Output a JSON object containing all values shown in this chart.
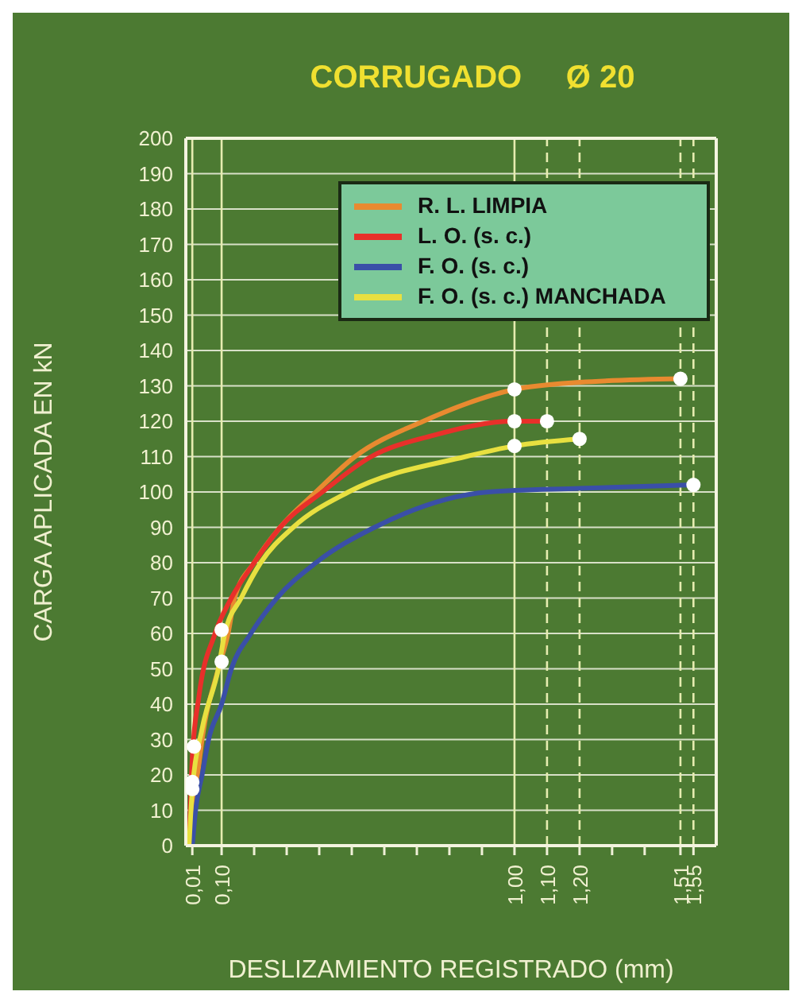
{
  "chart_data": {
    "type": "line",
    "title": "CORRUGADO     Ø 20",
    "xlabel": "DESLIZAMIENTO REGISTRADO (mm)",
    "ylabel": "CARGA APLICADA EN  kN",
    "xlim": [
      -0.01,
      1.62
    ],
    "xticks": [
      {
        "value": 0.01,
        "label": "0,01"
      },
      {
        "value": 0.1,
        "label": "0,10"
      },
      {
        "value": 0.2,
        "label": null
      },
      {
        "value": 0.3,
        "label": null
      },
      {
        "value": 0.4,
        "label": null
      },
      {
        "value": 0.5,
        "label": null
      },
      {
        "value": 0.6,
        "label": null
      },
      {
        "value": 0.7,
        "label": null
      },
      {
        "value": 0.8,
        "label": null
      },
      {
        "value": 0.9,
        "label": null
      },
      {
        "value": 1.0,
        "label": "1,00"
      },
      {
        "value": 1.1,
        "label": "1,10"
      },
      {
        "value": 1.2,
        "label": "1,20"
      },
      {
        "value": 1.3,
        "label": null
      },
      {
        "value": 1.4,
        "label": null
      },
      {
        "value": 1.51,
        "label": "1,51"
      },
      {
        "value": 1.55,
        "label": "1,55"
      }
    ],
    "ylim": [
      0,
      200
    ],
    "yticks": [
      0,
      10,
      20,
      30,
      40,
      50,
      60,
      70,
      80,
      90,
      100,
      110,
      120,
      130,
      140,
      150,
      160,
      170,
      180,
      190,
      200
    ],
    "grid": "y",
    "legend": "top right",
    "marker": "none",
    "line_style": "solid",
    "ref_lines": [
      {
        "axis": "x",
        "value": 0.01,
        "color": "#e6ecb0",
        "line_style": "solid"
      },
      {
        "axis": "x",
        "value": 0.1,
        "color": "#e6ecb0",
        "line_style": "solid"
      },
      {
        "axis": "x",
        "value": 1.0,
        "color": "#e6ecb0",
        "line_style": "solid"
      },
      {
        "axis": "x",
        "value": 1.1,
        "color": "#e6ecb0",
        "line_style": "dashed"
      },
      {
        "axis": "x",
        "value": 1.2,
        "color": "#e6ecb0",
        "line_style": "dashed"
      },
      {
        "axis": "x",
        "value": 1.51,
        "color": "#e6ecb0",
        "line_style": "dashed"
      },
      {
        "axis": "x",
        "value": 1.55,
        "color": "#e6ecb0",
        "line_style": "dashed"
      }
    ],
    "series": [
      {
        "name": "R. L. LIMPIA",
        "color": "#e88a30",
        "x": [
          0,
          0.02,
          0.04,
          0.09,
          0.12,
          0.14,
          0.2,
          0.28,
          0.39,
          0.51,
          0.72,
          1.0,
          1.2,
          1.51
        ],
        "values": [
          0,
          15,
          30,
          50,
          60,
          70,
          80,
          90,
          100,
          110,
          120,
          129,
          131,
          132
        ]
      },
      {
        "name": "L. O. (s. c.)",
        "color": "#e8302a",
        "x": [
          0,
          0.01,
          0.03,
          0.08,
          0.13,
          0.2,
          0.28,
          0.41,
          0.56,
          0.75,
          1.0,
          1.1
        ],
        "values": [
          0,
          25,
          42,
          60,
          70,
          80,
          90,
          100,
          110,
          116,
          120,
          120
        ]
      },
      {
        "name": "F. O. (s. c.)",
        "color": "#3a4fa8",
        "x": [
          0.01,
          0.02,
          0.04,
          0.06,
          0.1,
          0.13,
          0.19,
          0.27,
          0.39,
          0.57,
          0.92,
          1.2,
          1.55
        ],
        "values": [
          0,
          10,
          20,
          30,
          40,
          50,
          60,
          70,
          80,
          90,
          100,
          101,
          102
        ]
      },
      {
        "name": "F. O. (s. c.) MANCHADA",
        "color": "#e8e040",
        "x": [
          0,
          0.01,
          0.04,
          0.09,
          0.11,
          0.16,
          0.22,
          0.32,
          0.49,
          0.85,
          1.0,
          1.2
        ],
        "values": [
          0,
          16,
          33,
          50,
          60,
          70,
          80,
          90,
          100,
          110,
          113,
          115
        ]
      },
      {
        "type": "scatter",
        "color": "#ffffff",
        "marker": "circle",
        "x": [
          0.015,
          0.01,
          0.01,
          0.1,
          0.1,
          1.0,
          1.0,
          1.0,
          1.1,
          1.2,
          1.51,
          1.55
        ],
        "values": [
          28,
          18,
          16,
          61,
          52,
          129,
          120,
          113,
          120,
          115,
          132,
          102
        ]
      }
    ]
  }
}
